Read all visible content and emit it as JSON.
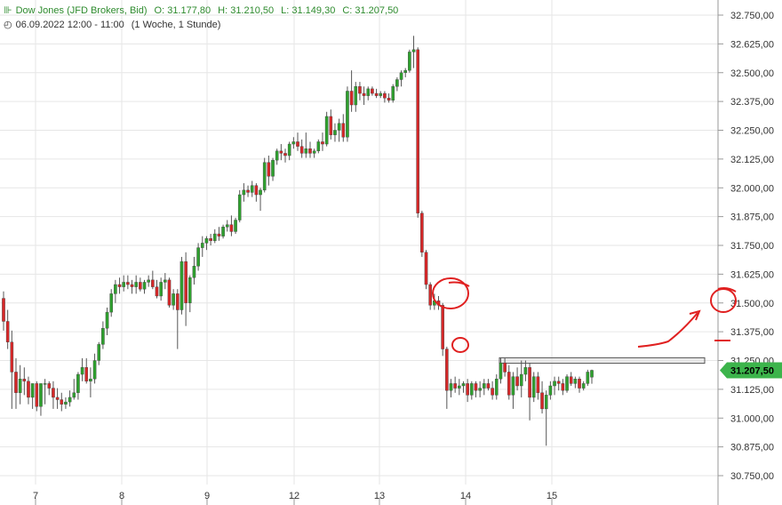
{
  "header": {
    "instrument": "Dow Jones (JFD Brokers, Bid)",
    "open": "O: 31.177,80",
    "high": "H: 31.210,50",
    "low": "L: 31.149,30",
    "close": "C: 31.207,50",
    "date": "06.09.2022 12:00 - 11:00",
    "period": "(1 Woche, 1 Stunde)",
    "icon": "candlestick-icon",
    "clock_icon": "clock-icon"
  },
  "colors": {
    "up": "#2ea02e",
    "down": "#d62728",
    "grid": "#e6e6e6",
    "annot": "#e02020",
    "badge": "#3cb44b"
  },
  "chart_data": {
    "type": "candlestick",
    "title": "Dow Jones (JFD Brokers, Bid)",
    "ylim": [
      30750,
      32750
    ],
    "yticks": [
      "32.750,00",
      "32.625,00",
      "32.500,00",
      "32.375,00",
      "32.250,00",
      "32.125,00",
      "32.000,00",
      "31.875,00",
      "31.750,00",
      "31.625,00",
      "31.500,00",
      "31.375,00",
      "31.250,00",
      "31.125,00",
      "31.000,00",
      "30.875,00",
      "30.750,00"
    ],
    "yticks_values": [
      32750,
      32625,
      32500,
      32375,
      32250,
      32125,
      32000,
      31875,
      31750,
      31625,
      31500,
      31375,
      31250,
      31125,
      31000,
      30875,
      30750
    ],
    "xticks": [
      "7",
      "8",
      "9",
      "12",
      "13",
      "14",
      "15"
    ],
    "last_price": "31.207,50",
    "resistance_zone": [
      31238,
      31262
    ],
    "grid": true,
    "candles": [
      [
        31520,
        31550,
        31380,
        31420
      ],
      [
        31420,
        31470,
        31300,
        31330
      ],
      [
        31330,
        31380,
        31040,
        31200
      ],
      [
        31200,
        31260,
        31040,
        31110
      ],
      [
        31110,
        31230,
        31060,
        31170
      ],
      [
        31170,
        31220,
        31100,
        31160
      ],
      [
        31160,
        31180,
        31060,
        31090
      ],
      [
        31090,
        31140,
        31040,
        31150
      ],
      [
        31150,
        31160,
        31030,
        31050
      ],
      [
        31050,
        31140,
        31010,
        31150
      ],
      [
        31150,
        31170,
        31060,
        31150
      ],
      [
        31150,
        31160,
        31100,
        31130
      ],
      [
        31130,
        31160,
        31040,
        31090
      ],
      [
        31090,
        31130,
        31040,
        31080
      ],
      [
        31080,
        31110,
        31030,
        31060
      ],
      [
        31060,
        31090,
        31040,
        31070
      ],
      [
        31070,
        31120,
        31050,
        31090
      ],
      [
        31090,
        31170,
        31080,
        31110
      ],
      [
        31110,
        31200,
        31080,
        31190
      ],
      [
        31190,
        31260,
        31160,
        31220
      ],
      [
        31220,
        31260,
        31150,
        31160
      ],
      [
        31160,
        31220,
        31090,
        31170
      ],
      [
        31170,
        31280,
        31150,
        31250
      ],
      [
        31250,
        31330,
        31230,
        31320
      ],
      [
        31320,
        31420,
        31300,
        31390
      ],
      [
        31390,
        31480,
        31360,
        31460
      ],
      [
        31460,
        31560,
        31440,
        31540
      ],
      [
        31540,
        31600,
        31500,
        31580
      ],
      [
        31580,
        31610,
        31540,
        31570
      ],
      [
        31570,
        31620,
        31550,
        31590
      ],
      [
        31590,
        31620,
        31560,
        31580
      ],
      [
        31580,
        31600,
        31540,
        31570
      ],
      [
        31570,
        31620,
        31540,
        31590
      ],
      [
        31590,
        31610,
        31550,
        31560
      ],
      [
        31560,
        31600,
        31540,
        31590
      ],
      [
        31590,
        31620,
        31570,
        31600
      ],
      [
        31600,
        31640,
        31560,
        31570
      ],
      [
        31570,
        31600,
        31520,
        31530
      ],
      [
        31530,
        31610,
        31510,
        31590
      ],
      [
        31590,
        31630,
        31560,
        31600
      ],
      [
        31600,
        31610,
        31480,
        31490
      ],
      [
        31490,
        31560,
        31470,
        31540
      ],
      [
        31540,
        31560,
        31300,
        31470
      ],
      [
        31470,
        31700,
        31450,
        31680
      ],
      [
        31680,
        31720,
        31400,
        31500
      ],
      [
        31500,
        31620,
        31460,
        31610
      ],
      [
        31610,
        31700,
        31580,
        31660
      ],
      [
        31660,
        31760,
        31640,
        31740
      ],
      [
        31740,
        31790,
        31700,
        31760
      ],
      [
        31760,
        31790,
        31730,
        31780
      ],
      [
        31780,
        31800,
        31750,
        31770
      ],
      [
        31770,
        31820,
        31760,
        31800
      ],
      [
        31800,
        31830,
        31770,
        31790
      ],
      [
        31790,
        31840,
        31780,
        31830
      ],
      [
        31830,
        31860,
        31810,
        31840
      ],
      [
        31840,
        31880,
        31790,
        31810
      ],
      [
        31810,
        31870,
        31800,
        31860
      ],
      [
        31860,
        31990,
        31850,
        31970
      ],
      [
        31970,
        32020,
        31940,
        31990
      ],
      [
        31990,
        32010,
        31960,
        31980
      ],
      [
        31980,
        32030,
        31960,
        32010
      ],
      [
        32010,
        32020,
        31940,
        31970
      ],
      [
        31970,
        32000,
        31900,
        31990
      ],
      [
        31990,
        32130,
        31980,
        32110
      ],
      [
        32110,
        32140,
        32010,
        32050
      ],
      [
        32050,
        32130,
        32030,
        32120
      ],
      [
        32120,
        32170,
        32100,
        32160
      ],
      [
        32160,
        32190,
        32120,
        32150
      ],
      [
        32150,
        32170,
        32110,
        32140
      ],
      [
        32140,
        32200,
        32120,
        32190
      ],
      [
        32190,
        32220,
        32170,
        32200
      ],
      [
        32200,
        32240,
        32160,
        32180
      ],
      [
        32180,
        32210,
        32130,
        32150
      ],
      [
        32150,
        32240,
        32130,
        32170
      ],
      [
        32170,
        32200,
        32130,
        32150
      ],
      [
        32150,
        32170,
        32130,
        32160
      ],
      [
        32160,
        32210,
        32150,
        32200
      ],
      [
        32200,
        32240,
        32160,
        32190
      ],
      [
        32190,
        32330,
        32180,
        32310
      ],
      [
        32310,
        32340,
        32210,
        32230
      ],
      [
        32230,
        32280,
        32200,
        32250
      ],
      [
        32250,
        32300,
        32200,
        32280
      ],
      [
        32280,
        32320,
        32200,
        32220
      ],
      [
        32220,
        32440,
        32200,
        32420
      ],
      [
        32420,
        32510,
        32330,
        32360
      ],
      [
        32360,
        32460,
        32330,
        32440
      ],
      [
        32440,
        32460,
        32380,
        32410
      ],
      [
        32410,
        32440,
        32360,
        32400
      ],
      [
        32400,
        32440,
        32380,
        32430
      ],
      [
        32430,
        32440,
        32400,
        32410
      ],
      [
        32410,
        32430,
        32390,
        32400
      ],
      [
        32400,
        32420,
        32390,
        32410
      ],
      [
        32410,
        32420,
        32370,
        32390
      ],
      [
        32390,
        32410,
        32370,
        32380
      ],
      [
        32380,
        32450,
        32370,
        32440
      ],
      [
        32440,
        32480,
        32420,
        32470
      ],
      [
        32470,
        32510,
        32440,
        32500
      ],
      [
        32500,
        32520,
        32480,
        32510
      ],
      [
        32510,
        32600,
        32500,
        32590
      ],
      [
        32590,
        32660,
        32520,
        32600
      ],
      [
        32600,
        32610,
        31870,
        31890
      ],
      [
        31890,
        31900,
        31700,
        31720
      ],
      [
        31720,
        31730,
        31560,
        31580
      ],
      [
        31580,
        31590,
        31470,
        31490
      ],
      [
        31490,
        31540,
        31470,
        31510
      ],
      [
        31510,
        31530,
        31470,
        31490
      ],
      [
        31490,
        31500,
        31270,
        31300
      ],
      [
        31300,
        31310,
        31040,
        31120
      ],
      [
        31120,
        31170,
        31090,
        31150
      ],
      [
        31150,
        31180,
        31110,
        31130
      ],
      [
        31130,
        31170,
        31100,
        31140
      ],
      [
        31140,
        31160,
        31110,
        31150
      ],
      [
        31150,
        31170,
        31070,
        31100
      ],
      [
        31100,
        31160,
        31080,
        31150
      ],
      [
        31150,
        31160,
        31090,
        31120
      ],
      [
        31120,
        31160,
        31090,
        31130
      ],
      [
        31130,
        31170,
        31100,
        31150
      ],
      [
        31150,
        31170,
        31120,
        31130
      ],
      [
        31130,
        31160,
        31080,
        31100
      ],
      [
        31100,
        31190,
        31080,
        31170
      ],
      [
        31170,
        31260,
        31150,
        31240
      ],
      [
        31240,
        31260,
        31180,
        31200
      ],
      [
        31200,
        31230,
        31080,
        31100
      ],
      [
        31100,
        31200,
        31040,
        31180
      ],
      [
        31180,
        31220,
        31120,
        31140
      ],
      [
        31140,
        31250,
        31090,
        31190
      ],
      [
        31190,
        31250,
        31160,
        31220
      ],
      [
        31220,
        31240,
        30990,
        31090
      ],
      [
        31090,
        31200,
        31070,
        31180
      ],
      [
        31180,
        31200,
        31080,
        31110
      ],
      [
        31110,
        31160,
        31020,
        31040
      ],
      [
        31040,
        31120,
        30880,
        31100
      ],
      [
        31100,
        31160,
        31080,
        31140
      ],
      [
        31140,
        31180,
        31100,
        31160
      ],
      [
        31160,
        31180,
        31120,
        31150
      ],
      [
        31150,
        31170,
        31100,
        31120
      ],
      [
        31120,
        31190,
        31110,
        31180
      ],
      [
        31180,
        31200,
        31140,
        31150
      ],
      [
        31150,
        31180,
        31130,
        31170
      ],
      [
        31170,
        31180,
        31110,
        31130
      ],
      [
        31130,
        31160,
        31120,
        31150
      ],
      [
        31150,
        31210,
        31140,
        31200
      ],
      [
        31177.8,
        31210.5,
        31149.3,
        31207.5
      ]
    ]
  }
}
